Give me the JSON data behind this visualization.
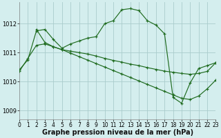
{
  "background_color": "#d4eeee",
  "grid_color": "#aacccc",
  "line_color": "#1f6b1f",
  "xlabel": "Graphe pression niveau de la mer (hPa)",
  "xlabel_fontsize": 7,
  "tick_fontsize": 5.5,
  "xlim": [
    0,
    23
  ],
  "ylim": [
    1008.7,
    1012.75
  ],
  "yticks": [
    1009,
    1010,
    1011,
    1012
  ],
  "xticks": [
    0,
    1,
    2,
    3,
    4,
    5,
    6,
    7,
    8,
    9,
    10,
    11,
    12,
    13,
    14,
    15,
    16,
    17,
    18,
    19,
    20,
    21,
    22,
    23
  ],
  "series": [
    {
      "x": [
        0,
        1,
        2,
        3,
        4,
        5,
        6,
        7,
        8,
        9,
        10,
        11,
        12,
        13,
        14,
        15,
        16,
        17,
        18,
        19,
        20,
        21,
        22,
        23
      ],
      "y": [
        1010.4,
        1010.75,
        1011.75,
        1011.8,
        1011.45,
        1011.15,
        1011.3,
        1011.4,
        1011.5,
        1011.55,
        1012.0,
        1012.1,
        1012.48,
        1012.52,
        1012.45,
        1012.1,
        1011.95,
        1011.65,
        1009.45,
        1009.25,
        1009.95,
        1010.45,
        1010.55,
        1010.65
      ]
    },
    {
      "x": [
        2,
        3,
        4,
        5,
        6,
        7,
        8,
        9,
        10,
        11,
        12,
        13,
        14,
        15,
        16,
        17,
        18,
        19,
        20,
        21,
        22,
        23
      ],
      "y": [
        1011.8,
        1011.35,
        1011.2,
        1011.1,
        1011.05,
        1011.0,
        1010.95,
        1010.88,
        1010.8,
        1010.73,
        1010.67,
        1010.6,
        1010.55,
        1010.48,
        1010.42,
        1010.36,
        1010.32,
        1010.28,
        1010.25,
        1010.28,
        1010.35,
        1010.65
      ]
    },
    {
      "x": [
        0,
        1,
        2,
        3,
        4,
        5,
        6,
        7,
        8,
        9,
        10,
        11,
        12,
        13,
        14,
        15,
        16,
        17,
        18,
        19,
        20,
        21,
        22,
        23
      ],
      "y": [
        1010.35,
        1010.8,
        1011.25,
        1011.3,
        1011.2,
        1011.1,
        1010.98,
        1010.86,
        1010.74,
        1010.62,
        1010.5,
        1010.38,
        1010.26,
        1010.14,
        1010.02,
        1009.9,
        1009.78,
        1009.66,
        1009.54,
        1009.42,
        1009.38,
        1009.5,
        1009.75,
        1010.05
      ]
    }
  ]
}
